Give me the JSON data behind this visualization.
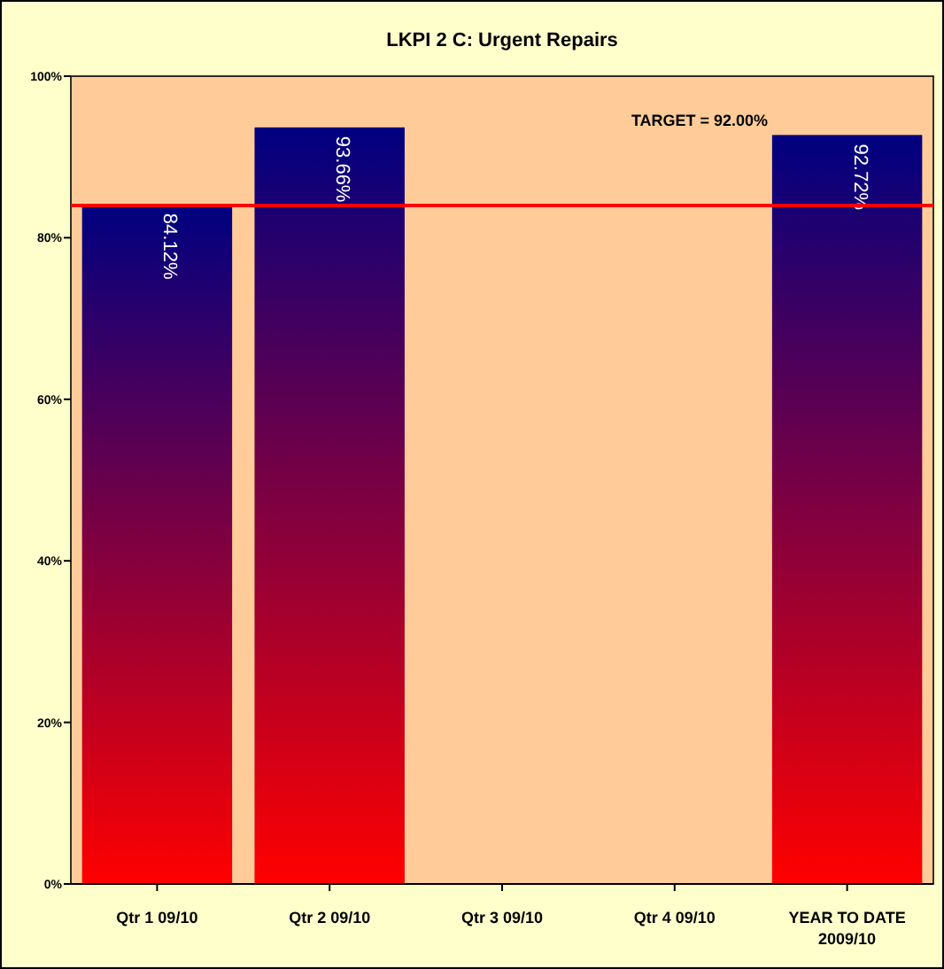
{
  "chart_data": {
    "type": "bar",
    "title": "LKPI 2 C: Urgent Repairs",
    "categories": [
      "Qtr 1 09/10",
      "Qtr 2 09/10",
      "Qtr 3 09/10",
      "Qtr 4 09/10",
      "YEAR TO DATE 2009/10"
    ],
    "series": [
      {
        "color": "#ff0000",
        "values": [
          84.12,
          93.66,
          null,
          null,
          92.72
        ],
        "value_labels": [
          "84.12%",
          "93.66%",
          null,
          null,
          "92.72%"
        ]
      }
    ],
    "ylim": [
      0,
      100
    ],
    "yticks": [
      {
        "value": 0,
        "label": "0%"
      },
      {
        "value": 20,
        "label": "20%"
      },
      {
        "value": 40,
        "label": "40%"
      },
      {
        "value": 60,
        "label": "60%"
      },
      {
        "value": 80,
        "label": "80%"
      },
      {
        "value": 100,
        "label": "100%"
      }
    ],
    "ref_lines": [
      {
        "axis": "y",
        "value": 84,
        "color": "#ff0000"
      }
    ],
    "annotations": [
      "TARGET = 92.00%"
    ],
    "grid": false
  }
}
